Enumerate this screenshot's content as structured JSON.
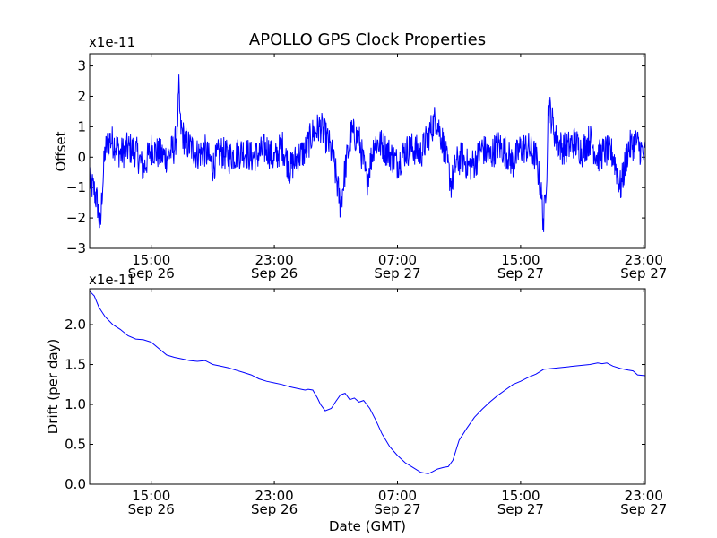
{
  "chart_data": [
    {
      "type": "line",
      "title": "APOLLO GPS Clock Properties",
      "ylabel": "Offset",
      "xlabel": "",
      "scale_label": "x1e-11",
      "ylim": [
        -3,
        3.4
      ],
      "y_ticks": [
        -3,
        -2,
        -1,
        0,
        1,
        2,
        3
      ],
      "y_tick_labels": [
        "−3",
        "−2",
        "−1",
        "0",
        "1",
        "2",
        "3"
      ],
      "x_unit": "hours since Sep 26 11:00 GMT",
      "xlim": [
        0,
        36.1
      ],
      "x_ticks": [
        {
          "x": 4,
          "time": "15:00",
          "date": "Sep 26"
        },
        {
          "x": 12,
          "time": "23:00",
          "date": "Sep 26"
        },
        {
          "x": 20,
          "time": "07:00",
          "date": "Sep 27"
        },
        {
          "x": 28,
          "time": "15:00",
          "date": "Sep 27"
        },
        {
          "x": 36,
          "time": "23:00",
          "date": "Sep 27"
        }
      ],
      "color": "#0000ff",
      "series": [
        {
          "values_note": "noisy offset; baseline envelope estimated from plot",
          "x": [
            0,
            0.3,
            0.5,
            0.7,
            0.8,
            1.0,
            1.3,
            1.7,
            2.0,
            2.5,
            3.0,
            3.5,
            4.0,
            4.5,
            5.0,
            5.5,
            5.7,
            5.8,
            5.9,
            6.2,
            6.6,
            7.0,
            7.5,
            8.0,
            8.5,
            9.0,
            9.5,
            10.0,
            10.5,
            11.0,
            11.5,
            12.0,
            12.5,
            13.0,
            13.5,
            14.0,
            14.5,
            15.0,
            15.5,
            15.8,
            16.0,
            16.3,
            16.6,
            17.0,
            17.5,
            18.0,
            18.5,
            19.0,
            19.5,
            20.0,
            20.5,
            21.0,
            21.5,
            22.0,
            22.5,
            23.0,
            23.3,
            23.5,
            23.8,
            24.2,
            24.6,
            25.0,
            25.5,
            26.0,
            26.5,
            27.0,
            27.5,
            28.0,
            28.5,
            29.0,
            29.3,
            29.5,
            29.7,
            29.8,
            30.0,
            30.3,
            30.7,
            31.0,
            31.5,
            32.0,
            32.5,
            33.0,
            33.5,
            34.0,
            34.5,
            35.0,
            35.5,
            36.1
          ],
          "values": [
            -0.8,
            -1.1,
            -1.5,
            -2.4,
            -1.2,
            0.2,
            0.6,
            0.4,
            0.1,
            0.3,
            0.2,
            -0.4,
            0.3,
            0.1,
            0.0,
            0.3,
            0.9,
            2.2,
            1.0,
            0.5,
            0.3,
            0.1,
            0.2,
            -0.3,
            0.2,
            0.0,
            0.1,
            0.2,
            0.0,
            0.1,
            0.3,
            -0.1,
            0.4,
            -0.4,
            0.0,
            0.2,
            0.8,
            1.0,
            0.5,
            0.0,
            -0.6,
            -1.6,
            -0.4,
            0.8,
            0.6,
            -0.8,
            0.5,
            0.4,
            0.1,
            -0.2,
            0.2,
            0.3,
            0.1,
            0.7,
            1.3,
            0.4,
            -0.4,
            -0.9,
            -0.2,
            0.0,
            -0.3,
            -0.2,
            0.3,
            0.0,
            0.4,
            0.2,
            -0.2,
            0.3,
            0.3,
            0.0,
            -1.0,
            -2.2,
            -0.4,
            1.8,
            1.3,
            0.6,
            0.3,
            0.3,
            0.5,
            0.2,
            0.6,
            0.0,
            0.2,
            0.1,
            -1.0,
            0.3,
            0.5,
            0.0
          ]
        }
      ]
    },
    {
      "type": "line",
      "title": "",
      "ylabel": "Drift (per day)",
      "xlabel": "Date (GMT)",
      "scale_label": "x1e-11",
      "ylim": [
        0,
        2.45
      ],
      "y_ticks": [
        0,
        0.5,
        1.0,
        1.5,
        2.0
      ],
      "y_tick_labels": [
        "0.0",
        "0.5",
        "1.0",
        "1.5",
        "2.0"
      ],
      "x_unit": "hours since Sep 26 11:00 GMT",
      "xlim": [
        0,
        36.1
      ],
      "x_ticks": [
        {
          "x": 4,
          "time": "15:00",
          "date": "Sep 26"
        },
        {
          "x": 12,
          "time": "23:00",
          "date": "Sep 26"
        },
        {
          "x": 20,
          "time": "07:00",
          "date": "Sep 27"
        },
        {
          "x": 28,
          "time": "15:00",
          "date": "Sep 27"
        },
        {
          "x": 36,
          "time": "23:00",
          "date": "Sep 27"
        }
      ],
      "color": "#0000ff",
      "series": [
        {
          "x": [
            0,
            0.3,
            0.6,
            1.0,
            1.5,
            2.0,
            2.5,
            3.0,
            3.5,
            4.0,
            4.5,
            5.0,
            5.5,
            6.0,
            6.5,
            7.0,
            7.5,
            8.0,
            8.5,
            9.0,
            9.5,
            10.0,
            10.5,
            11.0,
            11.5,
            12.0,
            12.5,
            13.0,
            13.5,
            14.0,
            14.2,
            14.5,
            14.8,
            15.0,
            15.3,
            15.7,
            16.0,
            16.3,
            16.6,
            16.9,
            17.2,
            17.5,
            17.8,
            18.2,
            18.6,
            19.0,
            19.5,
            20.0,
            20.5,
            21.0,
            21.5,
            22.0,
            22.3,
            22.6,
            23.0,
            23.3,
            23.6,
            24.0,
            24.5,
            25.0,
            25.5,
            26.0,
            26.5,
            27.0,
            27.5,
            28.0,
            28.5,
            29.0,
            29.5,
            30.0,
            30.5,
            31.0,
            31.5,
            32.0,
            32.5,
            33.0,
            33.3,
            33.6,
            34.0,
            34.5,
            35.0,
            35.3,
            35.6,
            36.1
          ],
          "values": [
            2.42,
            2.36,
            2.22,
            2.1,
            2.0,
            1.94,
            1.86,
            1.82,
            1.81,
            1.78,
            1.7,
            1.62,
            1.59,
            1.57,
            1.55,
            1.54,
            1.55,
            1.5,
            1.48,
            1.46,
            1.43,
            1.4,
            1.37,
            1.32,
            1.29,
            1.27,
            1.25,
            1.22,
            1.2,
            1.18,
            1.19,
            1.18,
            1.08,
            1.0,
            0.92,
            0.95,
            1.04,
            1.12,
            1.14,
            1.06,
            1.08,
            1.03,
            1.05,
            0.95,
            0.8,
            0.63,
            0.47,
            0.36,
            0.27,
            0.21,
            0.15,
            0.13,
            0.16,
            0.19,
            0.21,
            0.22,
            0.3,
            0.55,
            0.7,
            0.84,
            0.94,
            1.03,
            1.11,
            1.18,
            1.25,
            1.29,
            1.34,
            1.38,
            1.44,
            1.45,
            1.46,
            1.47,
            1.48,
            1.49,
            1.5,
            1.52,
            1.51,
            1.52,
            1.48,
            1.45,
            1.43,
            1.42,
            1.37,
            1.36
          ]
        }
      ]
    }
  ]
}
